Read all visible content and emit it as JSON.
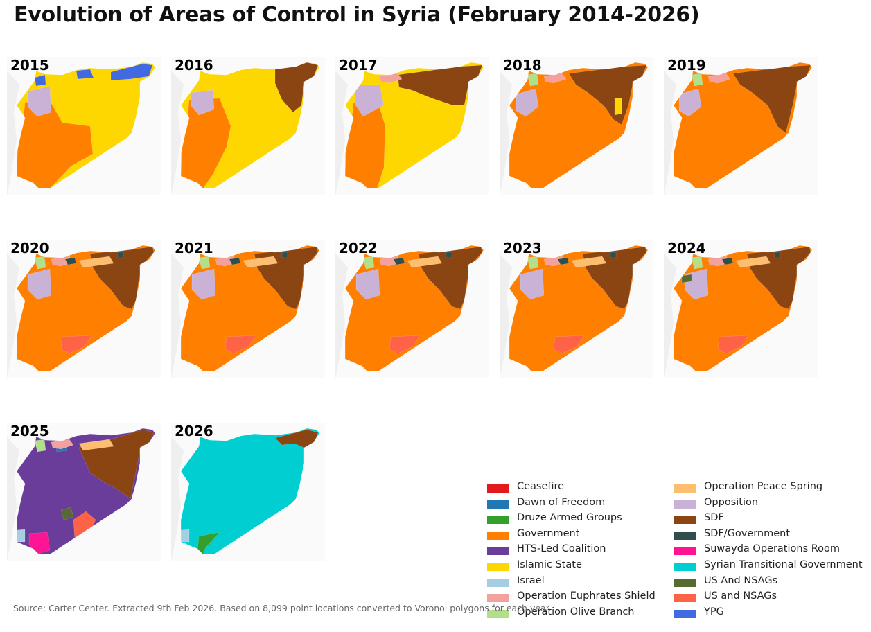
{
  "title": "Evolution of Areas of Control in Syria (February 2014-2026)",
  "source": "Source: Carter Center. Extracted 9th Feb 2026. Based on 8,099 point locations converted to Voronoi polygons for each year.",
  "colors": {
    "Ceasefire": "#e31a1c",
    "Dawn of Freedom": "#1f78b4",
    "Druze Armed Groups": "#33a02c",
    "Government": "#ff7f00",
    "HTS-Led Coalition": "#6a3d9a",
    "Islamic State": "#ffd700",
    "Israel": "#a6cee3",
    "Operation Euphrates Shield": "#f4a09c",
    "Operation Olive Branch": "#b2df8a",
    "Operation Peace Spring": "#fdbf6f",
    "Opposition": "#cab2d6",
    "SDF": "#8b4513",
    "SDF/Government": "#2f4f4f",
    "Suwayda Operations Room": "#ff1493",
    "Syrian Transitional Government": "#00ced1",
    "US And NSAGs": "#556b2f",
    "US and NSAGs": "#ff6347",
    "YPG": "#4169e1"
  },
  "legend": [
    {
      "label": "Ceasefire",
      "color": "#e31a1c"
    },
    {
      "label": "Dawn of Freedom",
      "color": "#1f78b4"
    },
    {
      "label": "Druze Armed Groups",
      "color": "#33a02c"
    },
    {
      "label": "Government",
      "color": "#ff7f00"
    },
    {
      "label": "HTS-Led Coalition",
      "color": "#6a3d9a"
    },
    {
      "label": "Islamic State",
      "color": "#ffd700"
    },
    {
      "label": "Israel",
      "color": "#a6cee3"
    },
    {
      "label": "Operation Euphrates Shield",
      "color": "#f4a09c"
    },
    {
      "label": "Operation Olive Branch",
      "color": "#b2df8a"
    },
    {
      "label": "Operation Peace Spring",
      "color": "#fdbf6f"
    },
    {
      "label": "Opposition",
      "color": "#cab2d6"
    },
    {
      "label": "SDF",
      "color": "#8b4513"
    },
    {
      "label": "SDF/Government",
      "color": "#2f4f4f"
    },
    {
      "label": "Suwayda Operations Room",
      "color": "#ff1493"
    },
    {
      "label": "Syrian Transitional Government",
      "color": "#00ced1"
    },
    {
      "label": "US And NSAGs",
      "color": "#556b2f"
    },
    {
      "label": "US and NSAGs",
      "color": "#ff6347"
    },
    {
      "label": "YPG",
      "color": "#4169e1"
    }
  ],
  "maps": [
    {
      "year": "2015",
      "base": "Islamic State",
      "overlays": [
        "Government",
        "Opposition",
        "YPG"
      ]
    },
    {
      "year": "2016",
      "base": "Islamic State",
      "overlays": [
        "Government",
        "Opposition",
        "SDF"
      ]
    },
    {
      "year": "2017",
      "base": "Islamic State",
      "overlays": [
        "Government",
        "Opposition",
        "SDF",
        "Operation Euphrates Shield"
      ]
    },
    {
      "year": "2018",
      "base": "Government",
      "overlays": [
        "SDF",
        "Opposition",
        "Islamic State",
        "Operation Euphrates Shield",
        "Operation Olive Branch"
      ]
    },
    {
      "year": "2019",
      "base": "Government",
      "overlays": [
        "SDF",
        "Opposition",
        "Operation Euphrates Shield",
        "Operation Olive Branch"
      ]
    },
    {
      "year": "2020",
      "base": "Government",
      "overlays": [
        "SDF",
        "Operation Peace Spring",
        "Opposition",
        "Operation Euphrates Shield",
        "Operation Olive Branch",
        "SDF/Government",
        "US and NSAGs"
      ]
    },
    {
      "year": "2021",
      "base": "Government",
      "overlays": [
        "SDF",
        "Operation Peace Spring",
        "Opposition",
        "Operation Euphrates Shield",
        "Operation Olive Branch",
        "SDF/Government",
        "US and NSAGs"
      ]
    },
    {
      "year": "2022",
      "base": "Government",
      "overlays": [
        "SDF",
        "Operation Peace Spring",
        "Opposition",
        "Operation Euphrates Shield",
        "Operation Olive Branch",
        "SDF/Government",
        "US and NSAGs"
      ]
    },
    {
      "year": "2023",
      "base": "Government",
      "overlays": [
        "SDF",
        "Operation Peace Spring",
        "Opposition",
        "Operation Euphrates Shield",
        "Operation Olive Branch",
        "SDF/Government",
        "US and NSAGs"
      ]
    },
    {
      "year": "2024",
      "base": "Government",
      "overlays": [
        "SDF",
        "Operation Peace Spring",
        "Opposition",
        "Operation Euphrates Shield",
        "Operation Olive Branch",
        "SDF/Government",
        "US and NSAGs",
        "US And NSAGs"
      ]
    },
    {
      "year": "2025",
      "base": "HTS-Led Coalition",
      "overlays": [
        "SDF",
        "Operation Peace Spring",
        "Dawn of Freedom",
        "Operation Euphrates Shield",
        "Operation Olive Branch",
        "US and NSAGs",
        "US And NSAGs",
        "Suwayda Operations Room",
        "Israel"
      ]
    },
    {
      "year": "2026",
      "base": "Syrian Transitional Government",
      "overlays": [
        "SDF",
        "Druze Armed Groups",
        "Israel"
      ]
    }
  ]
}
